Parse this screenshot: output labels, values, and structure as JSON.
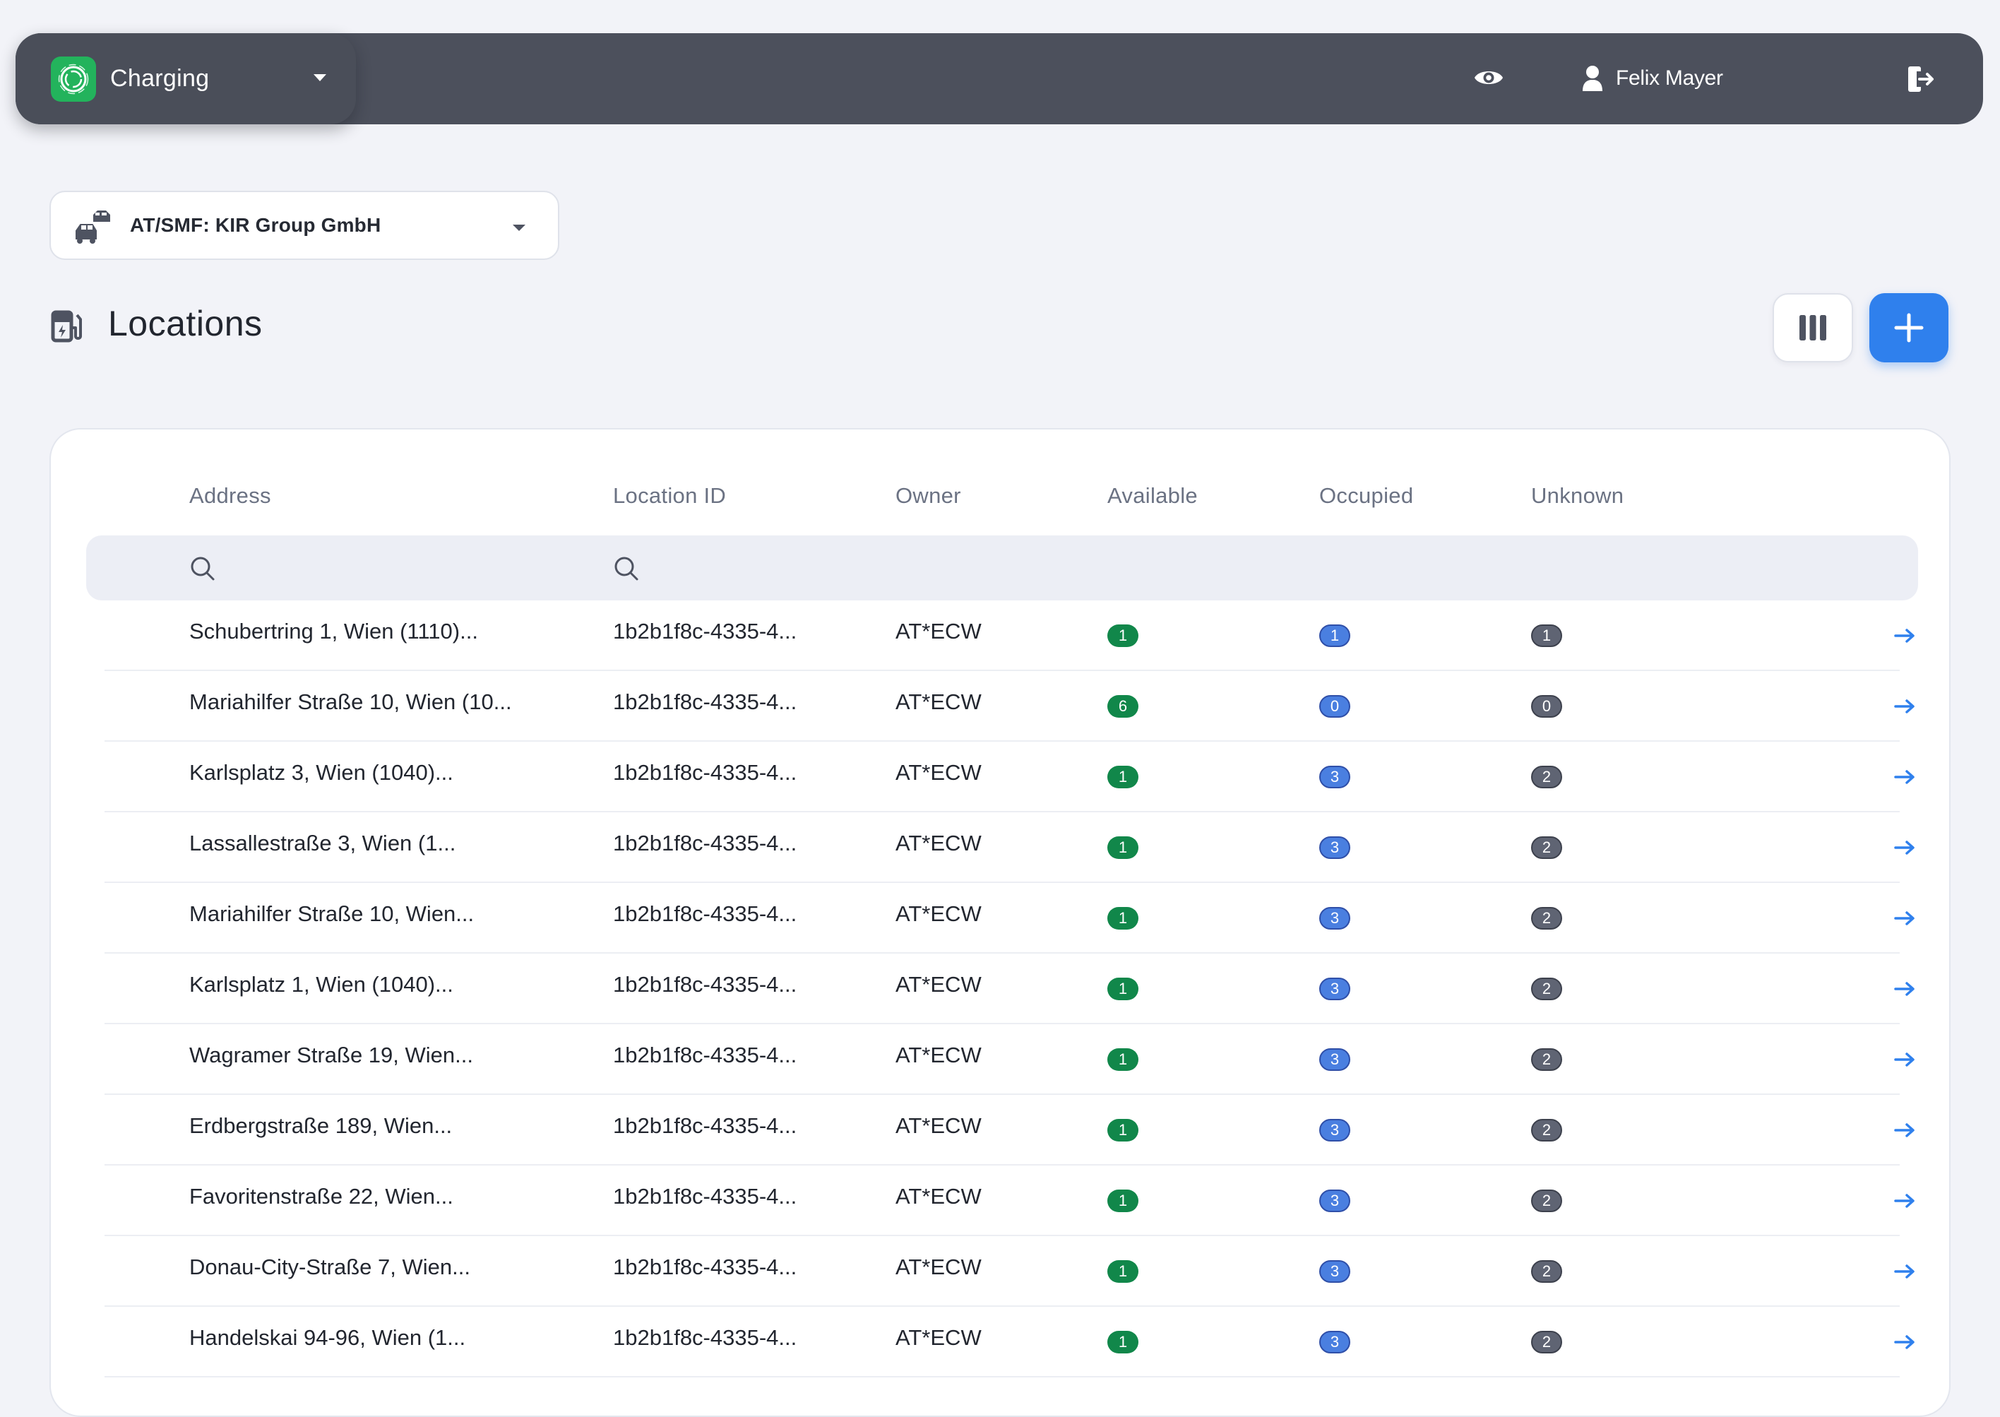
{
  "topbar": {
    "app_name": "Charging",
    "user_name": "Felix Mayer",
    "icons": {
      "logo": "app-logo-icon",
      "eye": "eye-icon",
      "user": "user-icon",
      "logout": "logout-icon"
    }
  },
  "org_selector": {
    "label": "AT/SMF: KIR Group GmbH",
    "icon": "cars-icon"
  },
  "page": {
    "title": "Locations",
    "icon": "ev-station-icon"
  },
  "colors": {
    "accent": "#2f80ed",
    "available": "#11874a",
    "occupied": "#4a7fe0",
    "unknown": "#5f6473",
    "topbar": "#4c505c"
  },
  "table": {
    "headers": {
      "address": "Address",
      "location_id": "Location ID",
      "owner": "Owner",
      "available": "Available",
      "occupied": "Occupied",
      "unknown": "Unknown"
    },
    "rows": [
      {
        "address": "Schubertring 1, Wien (1110)...",
        "location_id": "1b2b1f8c-4335-4...",
        "owner": "AT*ECW",
        "available": "1",
        "occupied": "1",
        "unknown": "1"
      },
      {
        "address": "Mariahilfer Straße 10, Wien (10...",
        "location_id": "1b2b1f8c-4335-4...",
        "owner": "AT*ECW",
        "available": "6",
        "occupied": "0",
        "unknown": "0"
      },
      {
        "address": "Karlsplatz 3, Wien (1040)...",
        "location_id": "1b2b1f8c-4335-4...",
        "owner": "AT*ECW",
        "available": "1",
        "occupied": "3",
        "unknown": "2"
      },
      {
        "address": "Lassallestraße 3, Wien  (1...",
        "location_id": "1b2b1f8c-4335-4...",
        "owner": "AT*ECW",
        "available": "1",
        "occupied": "3",
        "unknown": "2"
      },
      {
        "address": "Mariahilfer Straße 10, Wien...",
        "location_id": "1b2b1f8c-4335-4...",
        "owner": "AT*ECW",
        "available": "1",
        "occupied": "3",
        "unknown": "2"
      },
      {
        "address": "Karlsplatz 1, Wien (1040)...",
        "location_id": "1b2b1f8c-4335-4...",
        "owner": "AT*ECW",
        "available": "1",
        "occupied": "3",
        "unknown": "2"
      },
      {
        "address": "Wagramer Straße 19, Wien...",
        "location_id": "1b2b1f8c-4335-4...",
        "owner": "AT*ECW",
        "available": "1",
        "occupied": "3",
        "unknown": "2"
      },
      {
        "address": "Erdbergstraße 189, Wien...",
        "location_id": "1b2b1f8c-4335-4...",
        "owner": "AT*ECW",
        "available": "1",
        "occupied": "3",
        "unknown": "2"
      },
      {
        "address": "Favoritenstraße 22, Wien...",
        "location_id": "1b2b1f8c-4335-4...",
        "owner": "AT*ECW",
        "available": "1",
        "occupied": "3",
        "unknown": "2"
      },
      {
        "address": "Donau-City-Straße 7, Wien...",
        "location_id": "1b2b1f8c-4335-4...",
        "owner": "AT*ECW",
        "available": "1",
        "occupied": "3",
        "unknown": "2"
      },
      {
        "address": "Handelskai 94-96, Wien (1...",
        "location_id": "1b2b1f8c-4335-4...",
        "owner": "AT*ECW",
        "available": "1",
        "occupied": "3",
        "unknown": "2"
      }
    ]
  }
}
